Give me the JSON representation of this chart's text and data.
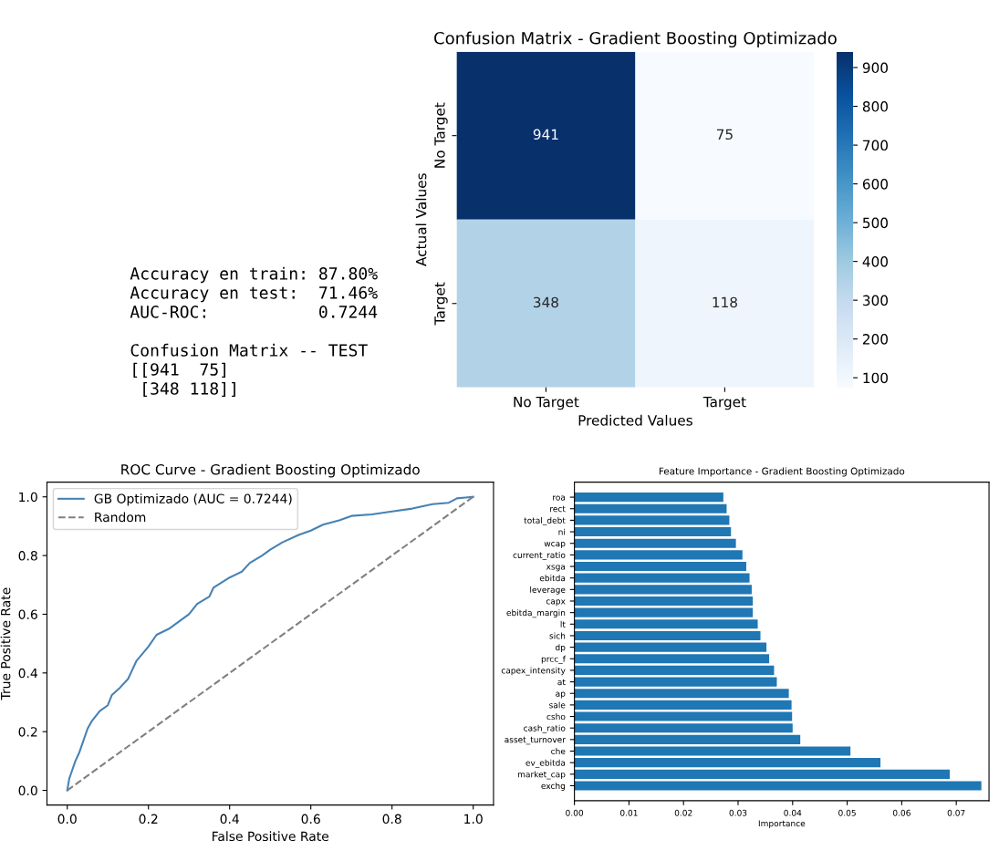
{
  "chart_data": [
    {
      "type": "other",
      "annotations": [
        "Accuracy en train: 87.80%\nAccuracy en test:  71.46%\nAUC-ROC:           0.7244\n\nConfusion Matrix -- TEST\n[[941  75]\n [348 118]]"
      ]
    },
    {
      "type": "heatmap",
      "title": "Confusion Matrix - Gradient Boosting Optimizado",
      "xlabel": "Predicted Values",
      "ylabel": "Actual Values",
      "categories": [
        "No Target",
        "Target"
      ],
      "y_categories": [
        "No Target",
        "Target"
      ],
      "cells": [
        [
          941,
          75
        ],
        [
          348,
          118
        ]
      ],
      "data_labels": true,
      "clim": [
        75,
        941
      ],
      "cticks": [
        100,
        200,
        300,
        400,
        500,
        600,
        700,
        800,
        900
      ]
    },
    {
      "type": "line",
      "title": "ROC Curve - Gradient Boosting Optimizado",
      "xlabel": "False Positive Rate",
      "ylabel": "True Positive Rate",
      "xlim": [
        -0.05,
        1.05
      ],
      "ylim": [
        -0.05,
        1.05
      ],
      "xticks": [
        {
          "value": 0,
          "label": "0.0"
        },
        0.2,
        0.4,
        0.6,
        0.8,
        {
          "value": 1,
          "label": "1.0"
        }
      ],
      "yticks": [
        {
          "value": 0,
          "label": "0.0"
        },
        0.2,
        0.4,
        0.6,
        0.8,
        {
          "value": 1,
          "label": "1.0"
        }
      ],
      "legend": "top left",
      "series": [
        {
          "name": "GB Optimizado (AUC = 0.7244)",
          "color": "#4682b4",
          "line_style": "solid",
          "x": [
            0,
            0.005,
            0.01,
            0.02,
            0.03,
            0.04,
            0.05,
            0.06,
            0.08,
            0.1,
            0.11,
            0.13,
            0.15,
            0.16,
            0.17,
            0.2,
            0.22,
            0.25,
            0.28,
            0.3,
            0.32,
            0.35,
            0.36,
            0.4,
            0.43,
            0.45,
            0.48,
            0.5,
            0.53,
            0.57,
            0.6,
            0.63,
            0.67,
            0.7,
            0.75,
            0.8,
            0.85,
            0.9,
            0.94,
            0.96,
            1
          ],
          "values": [
            0,
            0.04,
            0.06,
            0.1,
            0.13,
            0.17,
            0.21,
            0.235,
            0.27,
            0.29,
            0.325,
            0.35,
            0.38,
            0.41,
            0.44,
            0.49,
            0.53,
            0.55,
            0.58,
            0.6,
            0.635,
            0.66,
            0.69,
            0.725,
            0.745,
            0.775,
            0.8,
            0.82,
            0.845,
            0.87,
            0.885,
            0.905,
            0.92,
            0.935,
            0.94,
            0.95,
            0.96,
            0.975,
            0.98,
            0.995,
            1
          ]
        },
        {
          "name": "Random",
          "color": "#808080",
          "line_style": "dashed",
          "x": [
            0,
            1
          ],
          "values": [
            0,
            1
          ]
        }
      ]
    },
    {
      "type": "bar",
      "orientation": "horizontal",
      "title": "Feature Importance - Gradient Boosting Optimizado",
      "xlabel": "Importance",
      "categories": [
        "roa",
        "rect",
        "total_debt",
        "ni",
        "wcap",
        "current_ratio",
        "xsga",
        "ebitda",
        "leverage",
        "capx",
        "ebitda_margin",
        "lt",
        "sich",
        "dp",
        "prcc_f",
        "capex_intensity",
        "at",
        "ap",
        "sale",
        "csho",
        "cash_ratio",
        "asset_turnover",
        "che",
        "ev_ebitda",
        "market_cap",
        "exchg"
      ],
      "values": [
        0.0273,
        0.0279,
        0.0284,
        0.0287,
        0.0296,
        0.0308,
        0.0315,
        0.0321,
        0.0325,
        0.0327,
        0.0327,
        0.0336,
        0.0341,
        0.0352,
        0.0357,
        0.0366,
        0.0371,
        0.0393,
        0.0398,
        0.0399,
        0.04,
        0.0414,
        0.0506,
        0.0561,
        0.0688,
        0.0746
      ],
      "color": "#1f77b4",
      "xlim": [
        0,
        0.076
      ],
      "xticks": [
        {
          "value": 0,
          "label": "0.00"
        },
        {
          "value": 0.01,
          "label": "0.01"
        },
        {
          "value": 0.02,
          "label": "0.02"
        },
        {
          "value": 0.03,
          "label": "0.03"
        },
        {
          "value": 0.04,
          "label": "0.04"
        },
        {
          "value": 0.05,
          "label": "0.05"
        },
        {
          "value": 0.06,
          "label": "0.06"
        },
        {
          "value": 0.07,
          "label": "0.07"
        }
      ]
    }
  ]
}
